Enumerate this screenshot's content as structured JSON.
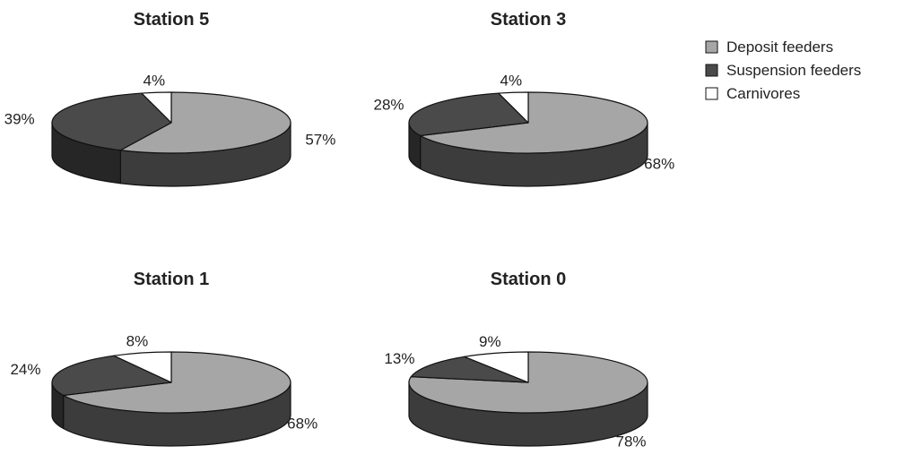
{
  "chart_data": [
    {
      "type": "pie",
      "title": "Station 5",
      "categories": [
        "Deposit feeders",
        "Suspension feeders",
        "Carnivores"
      ],
      "values": [
        57,
        39,
        4
      ],
      "labels": [
        "57%",
        "39%",
        "4%"
      ]
    },
    {
      "type": "pie",
      "title": "Station 3",
      "categories": [
        "Deposit feeders",
        "Suspension feeders",
        "Carnivores"
      ],
      "values": [
        68,
        28,
        4
      ],
      "labels": [
        "68%",
        "28%",
        "4%"
      ]
    },
    {
      "type": "pie",
      "title": "Station 1",
      "categories": [
        "Deposit feeders",
        "Suspension feeders",
        "Carnivores"
      ],
      "values": [
        68,
        24,
        8
      ],
      "labels": [
        "68%",
        "24%",
        "8%"
      ]
    },
    {
      "type": "pie",
      "title": "Station 0",
      "categories": [
        "Deposit feeders",
        "Suspension feeders",
        "Carnivores"
      ],
      "values": [
        78,
        13,
        9
      ],
      "labels": [
        "78%",
        "13%",
        "9%"
      ]
    }
  ],
  "legend": {
    "placement": "top-right",
    "items": [
      {
        "label": "Deposit feeders",
        "color": "#a6a6a6"
      },
      {
        "label": "Suspension feeders",
        "color": "#4a4a4a"
      },
      {
        "label": "Carnivores",
        "color": "#ffffff"
      }
    ]
  },
  "colors": {
    "Deposit feeders": "#a6a6a6",
    "Deposit feeders side": "#3c3c3c",
    "Suspension feeders": "#4a4a4a",
    "Suspension feeders side": "#262626",
    "Carnivores": "#ffffff",
    "Carnivores side": "#dddddd",
    "outline": "#111111"
  }
}
